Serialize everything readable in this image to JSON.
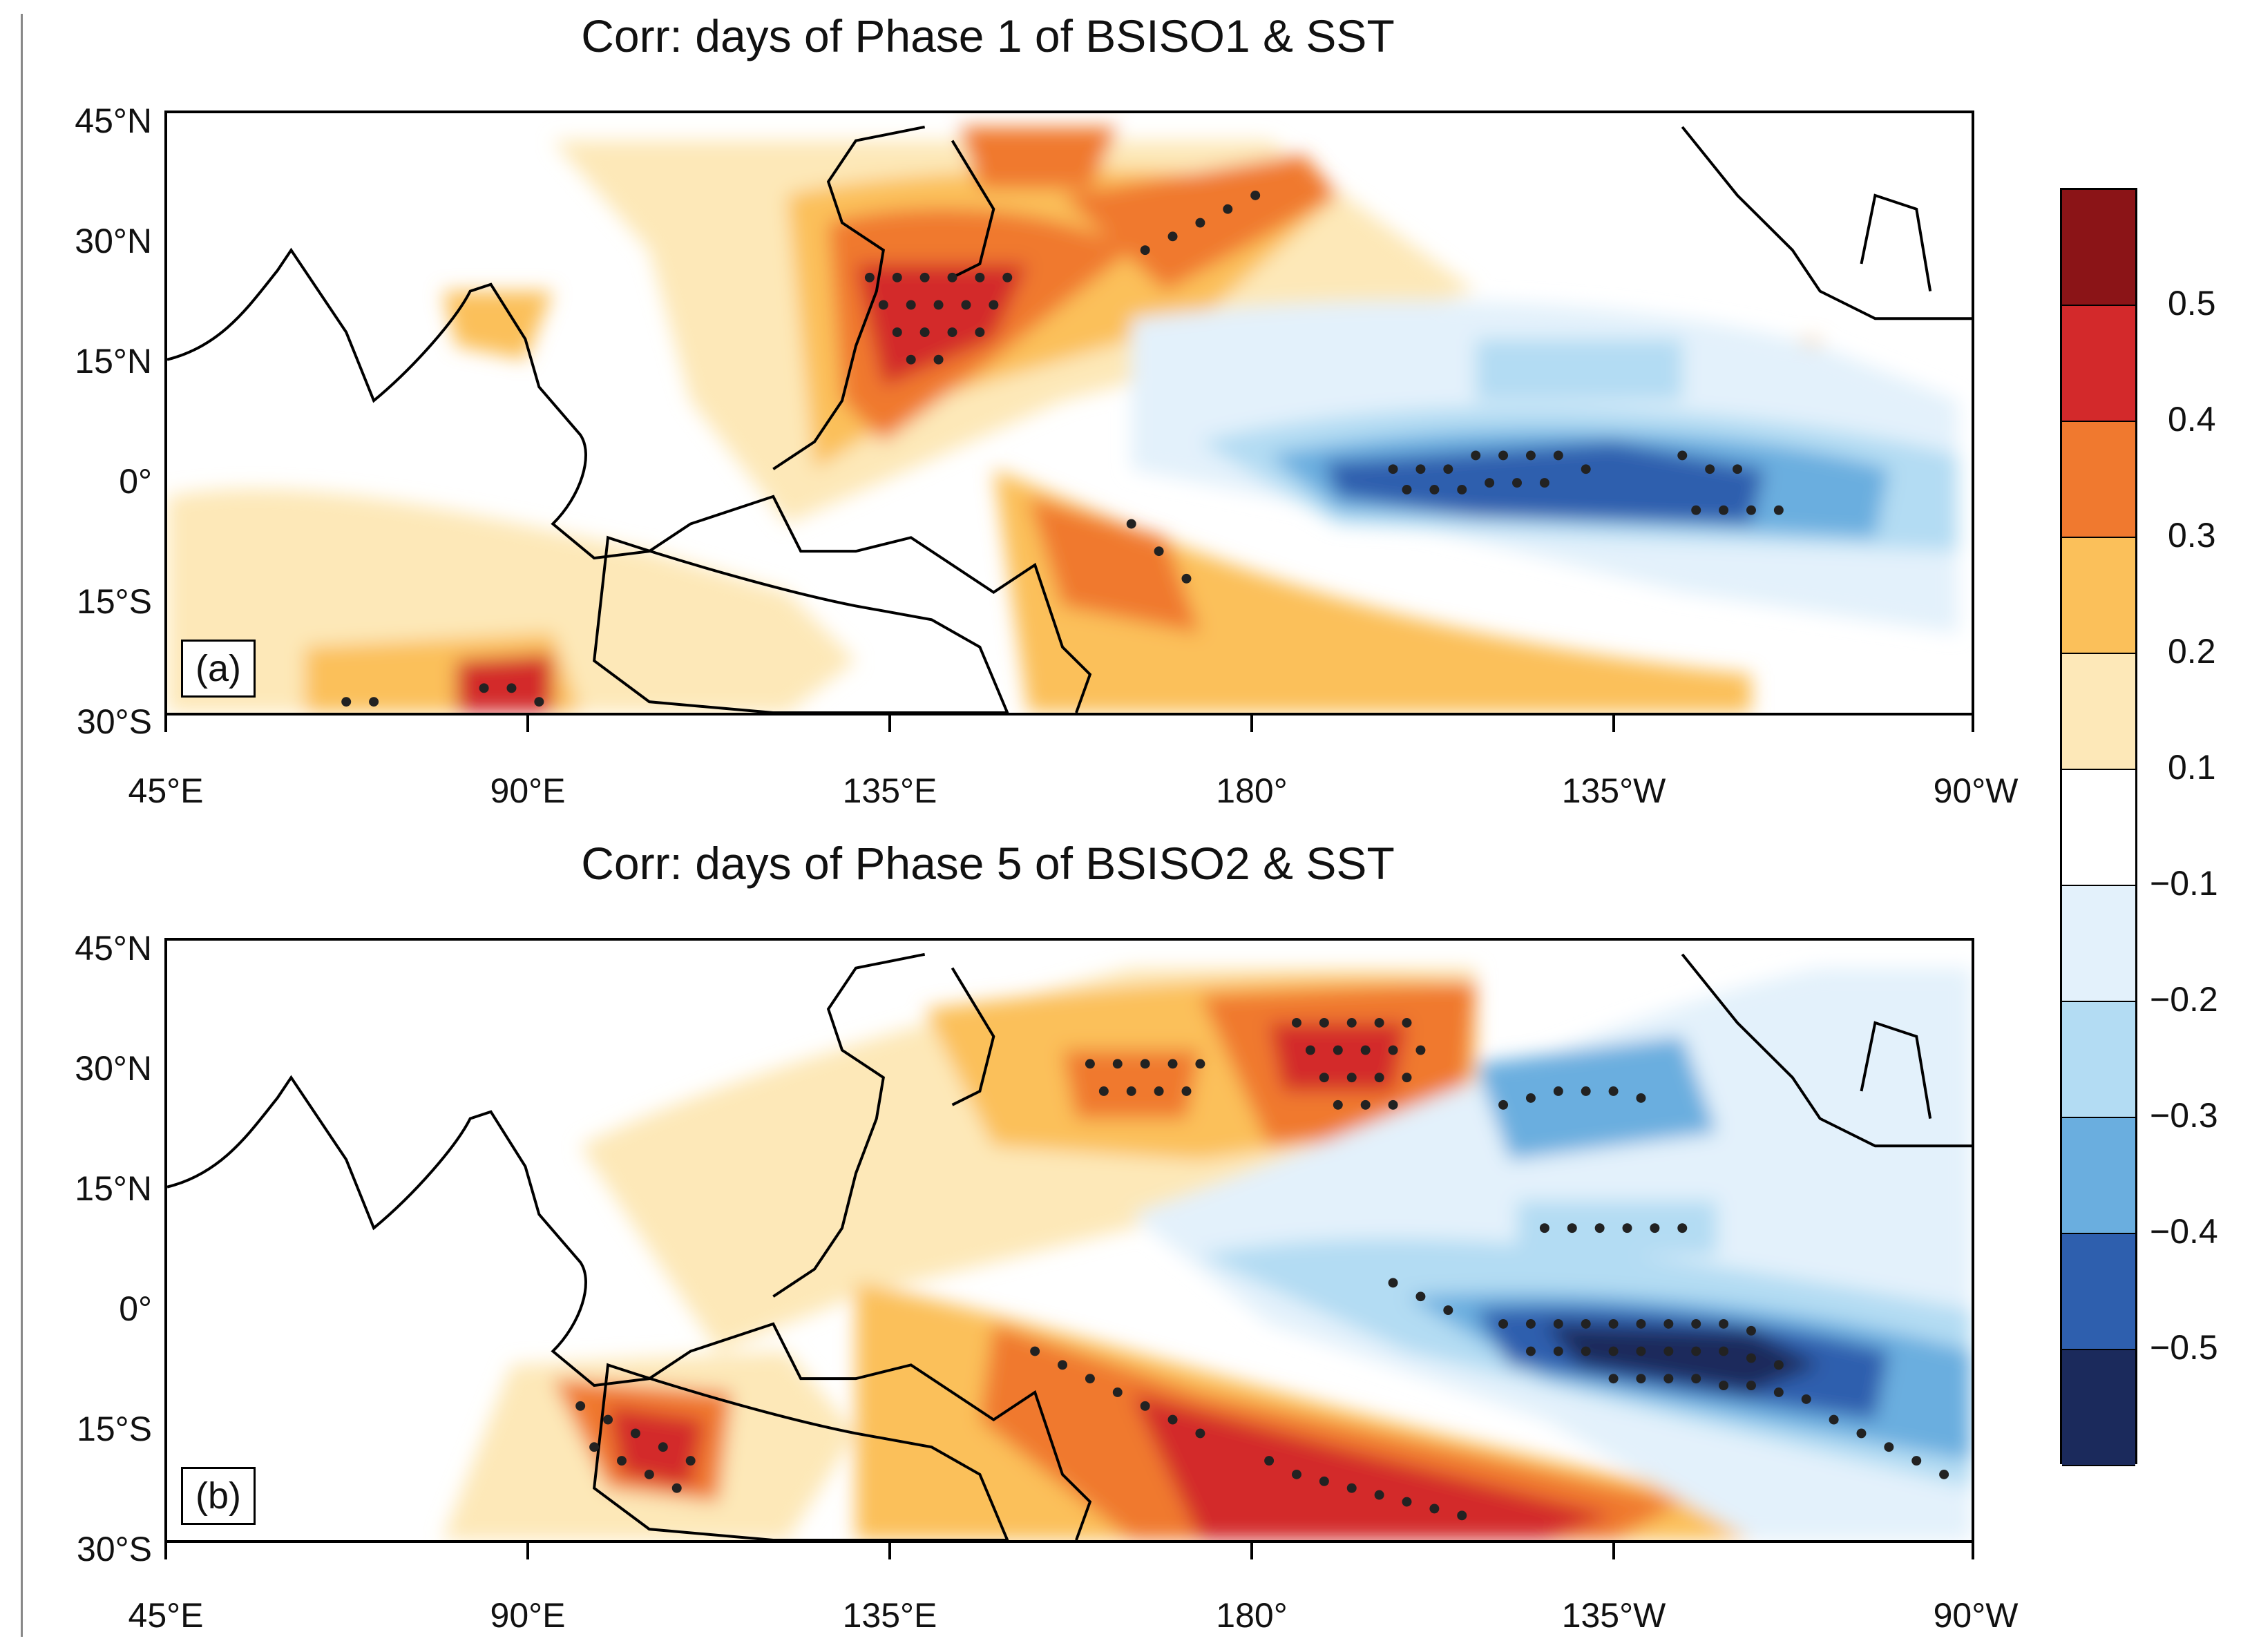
{
  "panels": [
    {
      "id": "a",
      "title": "Corr: days of Phase 1 of BSISO1 & SST",
      "label": "(a)"
    },
    {
      "id": "b",
      "title": "Corr: days of Phase 5 of BSISO2 & SST",
      "label": "(b)"
    }
  ],
  "axes": {
    "lat_labels": [
      "45°N",
      "30°N",
      "15°N",
      "0°",
      "15°S",
      "30°S"
    ],
    "lon_labels": [
      "45°E",
      "90°E",
      "135°E",
      "180°",
      "135°W",
      "90°W"
    ]
  },
  "colorbar": {
    "labels": [
      "0.5",
      "0.4",
      "0.3",
      "0.2",
      "0.1",
      "−0.1",
      "−0.2",
      "−0.3",
      "−0.4",
      "−0.5"
    ],
    "colors": [
      "#8b1417",
      "#d3292b",
      "#f0792f",
      "#fbc05a",
      "#fde8b8",
      "#ffffff",
      "#e3f1fb",
      "#b3dcf3",
      "#6aaedf",
      "#2e5fae",
      "#1b2a5c"
    ]
  },
  "chart_data": [
    {
      "type": "heatmap",
      "title": "Corr: days of Phase 1 of BSISO1 & SST",
      "x_range": [
        "45°E",
        "90°W"
      ],
      "y_range": [
        "30°S",
        "45°N"
      ],
      "significance": "stippled dots"
    },
    {
      "type": "heatmap",
      "title": "Corr: days of Phase 5 of BSISO2 & SST",
      "x_range": [
        "45°E",
        "90°W"
      ],
      "y_range": [
        "30°S",
        "45°N"
      ],
      "significance": "stippled dots"
    }
  ]
}
